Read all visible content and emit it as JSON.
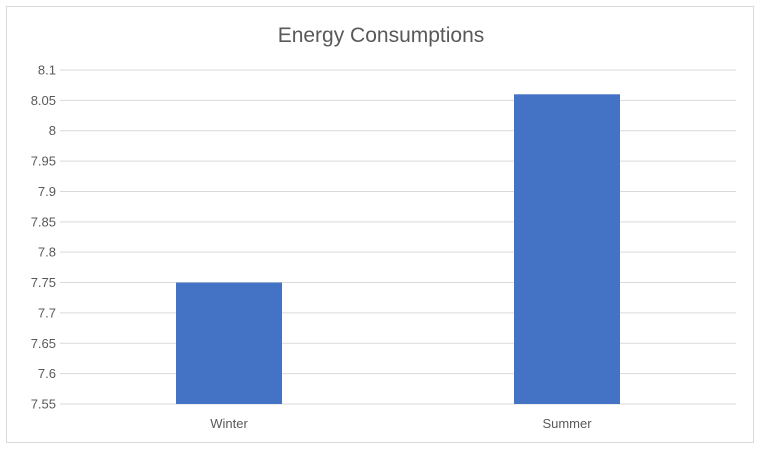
{
  "chart_data": {
    "type": "bar",
    "title": "Energy Consumptions",
    "categories": [
      "Winter",
      "Summer"
    ],
    "values": [
      7.75,
      8.06
    ],
    "ylim": [
      7.55,
      8.1
    ],
    "yticks": [
      "7.55",
      "7.6",
      "7.65",
      "7.7",
      "7.75",
      "7.8",
      "7.85",
      "7.9",
      "7.95",
      "8",
      "8.05",
      "8.1"
    ],
    "xlabel": "",
    "ylabel": "",
    "grid": true,
    "legend": "none",
    "bar_color": "#4472C4"
  }
}
